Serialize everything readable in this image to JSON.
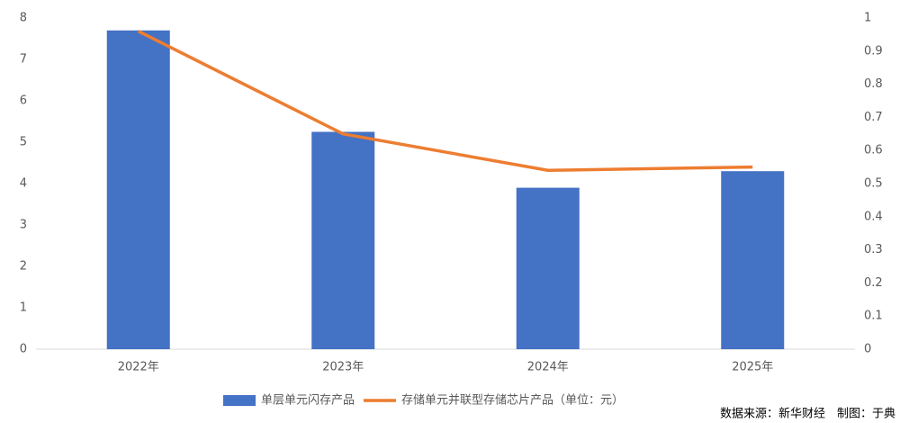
{
  "chart_data": {
    "type": "bar",
    "categories": [
      "2022年",
      "2023年",
      "2024年",
      "2025年"
    ],
    "series": [
      {
        "name": "单层单元闪存产品",
        "type": "bar",
        "color": "#4472c4",
        "values": [
          7.7,
          5.25,
          3.9,
          4.3
        ]
      },
      {
        "name": "存储单元并联型存储芯片产品（单位：元）",
        "type": "line",
        "axis": "y2",
        "color": "#ed7d31",
        "values": [
          0.96,
          0.65,
          0.54,
          0.55
        ]
      }
    ],
    "ylim": [
      0,
      8
    ],
    "yticks": [
      0,
      1,
      2,
      3,
      4,
      5,
      6,
      7,
      8
    ],
    "y2lim": [
      0,
      1
    ],
    "y2ticks": [
      0,
      0.1,
      0.2,
      0.3,
      0.4,
      0.5,
      0.6,
      0.7,
      0.8,
      0.9,
      1
    ],
    "grid": false,
    "source": "数据来源：新华财经　制图：于典"
  }
}
